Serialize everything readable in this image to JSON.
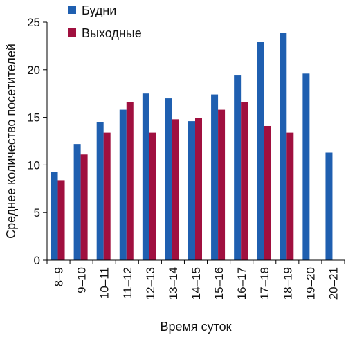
{
  "chart_data": {
    "type": "bar",
    "title": "",
    "xlabel": "Время суток",
    "ylabel": "Среднее количество посетителей",
    "ylim": [
      0,
      25
    ],
    "yticks": [
      0,
      5,
      10,
      15,
      20,
      25
    ],
    "categories": [
      "8–9",
      "9–10",
      "10–11",
      "11–12",
      "12–13",
      "13–14",
      "14–15",
      "15–16",
      "16–17",
      "17–18",
      "18–19",
      "19–20",
      "20–21"
    ],
    "series": [
      {
        "name": "Будни",
        "color": "#1f5fb0",
        "values": [
          9.3,
          12.2,
          14.5,
          15.8,
          17.5,
          17.0,
          14.6,
          17.4,
          19.4,
          22.9,
          23.9,
          19.6,
          11.3
        ]
      },
      {
        "name": "Выходные",
        "color": "#a0103f",
        "values": [
          8.4,
          11.1,
          13.4,
          16.6,
          13.4,
          14.8,
          14.9,
          15.8,
          16.6,
          14.1,
          13.4,
          null,
          null
        ]
      }
    ],
    "grid": false,
    "legend_position": "top-left"
  }
}
